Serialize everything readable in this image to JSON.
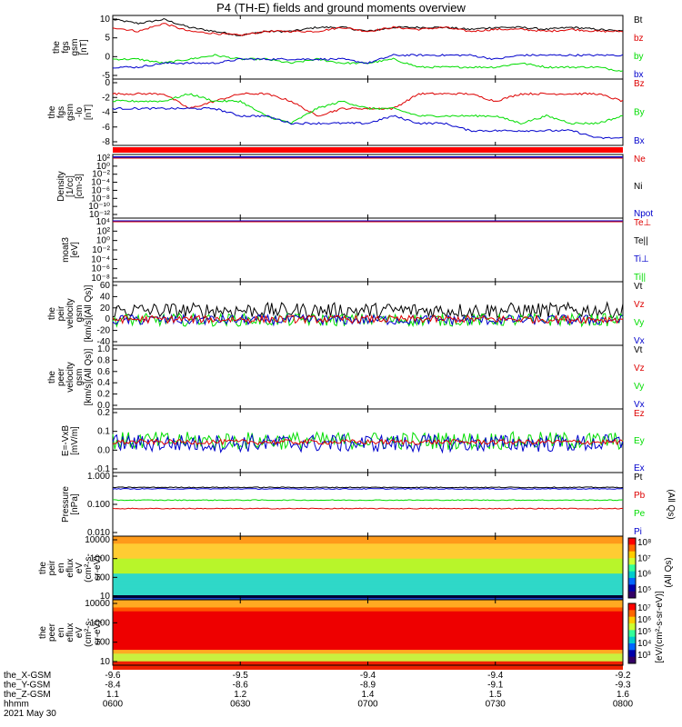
{
  "title": "P4 (TH-E) fields and ground moments overview",
  "colors": {
    "black": "#000000",
    "red": "#dd0000",
    "green": "#00dd00",
    "blue": "#0000cc"
  },
  "chart_data": {
    "type": "line",
    "panels": [
      {
        "id": "fgs-gsm",
        "ylabel": [
          "the",
          "fgs",
          "gsm",
          "[nT]"
        ],
        "ylim": [
          -6,
          10
        ],
        "yticks": [
          "10",
          "5",
          "0",
          "-5"
        ],
        "legend": [
          {
            "text": "Bt",
            "color": "#000000"
          },
          {
            "text": "bz",
            "color": "#dd0000"
          },
          {
            "text": "by",
            "color": "#00dd00"
          },
          {
            "text": "bx",
            "color": "#0000cc"
          }
        ],
        "series": [
          {
            "name": "Bt",
            "color": "#000000",
            "anchors": [
              9,
              8,
              9,
              7,
              6,
              5,
              6,
              6,
              7,
              7,
              6,
              7,
              7,
              7,
              6.5,
              7,
              7,
              6.5,
              7,
              6.5,
              6
            ]
          },
          {
            "name": "bz",
            "color": "#dd0000",
            "anchors": [
              7,
              6,
              8,
              6,
              5.5,
              5,
              6,
              6,
              6,
              7,
              6,
              7,
              6.5,
              7,
              6,
              6.5,
              6.5,
              6,
              6.5,
              6,
              6
            ]
          },
          {
            "name": "by",
            "color": "#00dd00",
            "anchors": [
              -1,
              -1,
              -2,
              -1,
              0,
              -1,
              -1,
              -2,
              -1,
              -2,
              -2,
              -1,
              -3,
              -3,
              -3,
              -3,
              -2,
              -3,
              -3,
              -3,
              -4
            ]
          },
          {
            "name": "bx",
            "color": "#0000cc",
            "anchors": [
              -3,
              -3,
              -2,
              -2,
              -2,
              -1,
              -1,
              -1,
              -1,
              -1,
              -2,
              0,
              0,
              0,
              0,
              -1,
              0,
              0,
              0,
              0,
              0
            ]
          }
        ]
      },
      {
        "id": "fgs-gse-lo",
        "ylabel": [
          "the",
          "fgs",
          "gsm",
          "-lo",
          "[nT]"
        ],
        "ylim": [
          -9,
          0
        ],
        "yticks": [
          "0",
          "-2",
          "-4",
          "-6",
          "-8"
        ],
        "legend": [
          {
            "text": "Bz",
            "color": "#dd0000"
          },
          {
            "text": "By",
            "color": "#00dd00"
          },
          {
            "text": "Bx",
            "color": "#0000cc"
          }
        ],
        "series": [
          {
            "name": "Bz",
            "color": "#dd0000",
            "anchors": [
              -2,
              -2,
              -2,
              -4,
              -3,
              -2,
              -2,
              -3,
              -5,
              -4,
              -4,
              -4,
              -2,
              -2,
              -2,
              -3,
              -2,
              -2,
              -2,
              -2,
              -3
            ]
          },
          {
            "name": "By",
            "color": "#00dd00",
            "anchors": [
              -3,
              -3,
              -3,
              -2,
              -3,
              -3,
              -5,
              -6,
              -4,
              -3,
              -4,
              -4,
              -5,
              -5,
              -5,
              -5,
              -6,
              -5,
              -6,
              -6,
              -5
            ]
          },
          {
            "name": "Bx",
            "color": "#0000cc",
            "anchors": [
              -4,
              -4,
              -4,
              -4,
              -4,
              -5,
              -5,
              -6,
              -6,
              -6,
              -6,
              -5,
              -6,
              -6,
              -7,
              -7,
              -7,
              -7,
              -7,
              -8,
              -8
            ]
          }
        ]
      },
      {
        "id": "density",
        "ylabel": [
          "Density",
          "[1/cc]",
          "[cm-3]"
        ],
        "yticks": [
          "10²",
          "10⁰",
          "10⁻²",
          "10⁻⁴",
          "10⁻⁶",
          "10⁻⁸",
          "10⁻¹⁰",
          "10⁻¹²"
        ],
        "legend": [
          {
            "text": "Ne",
            "color": "#dd0000"
          },
          {
            "text": "Ni",
            "color": "#000000"
          },
          {
            "text": "Npot",
            "color": "#0000cc"
          }
        ]
      },
      {
        "id": "moat3",
        "ylabel": [
          "moat3",
          "[eV]"
        ],
        "yticks": [
          "10⁴",
          "10²",
          "10⁰",
          "10⁻²",
          "10⁻⁴",
          "10⁻⁶",
          "10⁻⁸"
        ],
        "legend": [
          {
            "text": "Te⊥",
            "color": "#dd0000"
          },
          {
            "text": "Te||",
            "color": "#000000"
          },
          {
            "text": "Ti⊥",
            "color": "#0000cc"
          },
          {
            "text": "Ti||",
            "color": "#00dd00"
          }
        ]
      },
      {
        "id": "peir-vel",
        "ylabel": [
          "the",
          "peir",
          "velocity",
          "gsm",
          "[km/s](All Qs)]"
        ],
        "ylim": [
          -40,
          60
        ],
        "yticks": [
          "60",
          "40",
          "20",
          "0",
          "-20",
          "-40"
        ],
        "legend": [
          {
            "text": "Vt",
            "color": "#000000"
          },
          {
            "text": "Vz",
            "color": "#dd0000"
          },
          {
            "text": "Vy",
            "color": "#00dd00"
          },
          {
            "text": "Vx",
            "color": "#0000cc"
          }
        ],
        "series": [
          {
            "name": "Vt",
            "color": "#000000",
            "mean": 15,
            "noise": 12
          },
          {
            "name": "Vy",
            "color": "#00dd00",
            "mean": 0,
            "noise": 10
          },
          {
            "name": "Vx",
            "color": "#0000cc",
            "mean": 0,
            "noise": 8
          },
          {
            "name": "Vz",
            "color": "#dd0000",
            "mean": 1,
            "noise": 6
          }
        ]
      },
      {
        "id": "peer-vel",
        "ylabel": [
          "the",
          "peer",
          "velocity",
          "gsm",
          "[km/s](All Qs)]"
        ],
        "ylim": [
          0,
          1
        ],
        "yticks": [
          "1.0",
          "0.8",
          "0.6",
          "0.4",
          "0.2",
          "0.0"
        ],
        "legend": [
          {
            "text": "Vt",
            "color": "#000000"
          },
          {
            "text": "Vz",
            "color": "#dd0000"
          },
          {
            "text": "Vy",
            "color": "#00dd00"
          },
          {
            "text": "Vx",
            "color": "#0000cc"
          }
        ]
      },
      {
        "id": "efield",
        "ylabel": [
          "E=-VxB",
          "[mV/m]"
        ],
        "ylim": [
          -0.2,
          0.3
        ],
        "yticks": [
          "0.2",
          "0.1",
          "0.0",
          "-0.1"
        ],
        "legend": [
          {
            "text": "Ez",
            "color": "#dd0000"
          },
          {
            "text": "Ey",
            "color": "#00dd00"
          },
          {
            "text": "Ex",
            "color": "#0000cc"
          }
        ],
        "series": [
          {
            "name": "Ey",
            "color": "#00dd00",
            "mean": 0.05,
            "noise": 0.07
          },
          {
            "name": "Ex",
            "color": "#0000cc",
            "mean": 0.03,
            "noise": 0.07
          },
          {
            "name": "Ez",
            "color": "#dd0000",
            "mean": 0.04,
            "noise": 0.02
          }
        ]
      },
      {
        "id": "pressure",
        "ylabel": [
          "Pressure",
          "[nPa]"
        ],
        "ylim_log": [
          -3,
          0
        ],
        "yticks": [
          "1.000",
          "0.100",
          "0.010"
        ],
        "legend": [
          {
            "text": "Pt",
            "color": "#000000"
          },
          {
            "text": "Pb",
            "color": "#dd0000"
          },
          {
            "text": "Pe",
            "color": "#00dd00"
          },
          {
            "text": "Pi",
            "color": "#0000cc"
          }
        ],
        "right_label": "(All Qs)",
        "series": [
          {
            "name": "Pt",
            "color": "#000000",
            "value": 0.2
          },
          {
            "name": "Pi",
            "color": "#0000cc",
            "value": 0.17
          },
          {
            "name": "Pe",
            "color": "#00dd00",
            "value": 0.05
          },
          {
            "name": "Pb",
            "color": "#dd0000",
            "value": 0.02
          }
        ]
      },
      {
        "id": "peir-eflux",
        "ylabel": [
          "the",
          "peir",
          "en",
          "eflux",
          "eV",
          "(cm²-s-",
          "sr-eV)"
        ],
        "yticks": [
          "10000",
          "1000",
          "100",
          "10"
        ]
      },
      {
        "id": "peer-eflux",
        "ylabel": [
          "the",
          "peer",
          "en",
          "eflux",
          "eV",
          "(cm²-s-",
          "sr-eV)"
        ],
        "yticks": [
          "10000",
          "1000",
          "100",
          "10"
        ]
      }
    ],
    "colorbar1": {
      "ticks": [
        "10⁸",
        "10⁷",
        "10⁶",
        "10⁵"
      ]
    },
    "colorbar2": {
      "ticks": [
        "10⁷",
        "10⁶",
        "10⁵",
        "10⁴",
        "10³"
      ]
    },
    "colorbar_label": "[eV/(cm²-s-sr-eV)]",
    "colorbar_label_overlay": "(All Qs)",
    "xaxis": {
      "rows": [
        {
          "label": "the_X-GSM",
          "values": [
            "-9.6",
            "-9.5",
            "-9.4",
            "-9.4",
            "-9.2"
          ]
        },
        {
          "label": "the_Y-GSM",
          "values": [
            "-8.4",
            "-8.6",
            "-8.9",
            "-9.1",
            "-9.3"
          ]
        },
        {
          "label": "the_Z-GSM",
          "values": [
            "1.1",
            "1.2",
            "1.4",
            "1.5",
            "1.6"
          ]
        },
        {
          "label": "hhmm",
          "values": [
            "0600",
            "0630",
            "0700",
            "0730",
            "0800"
          ]
        }
      ],
      "date": "2021 May 30"
    }
  }
}
